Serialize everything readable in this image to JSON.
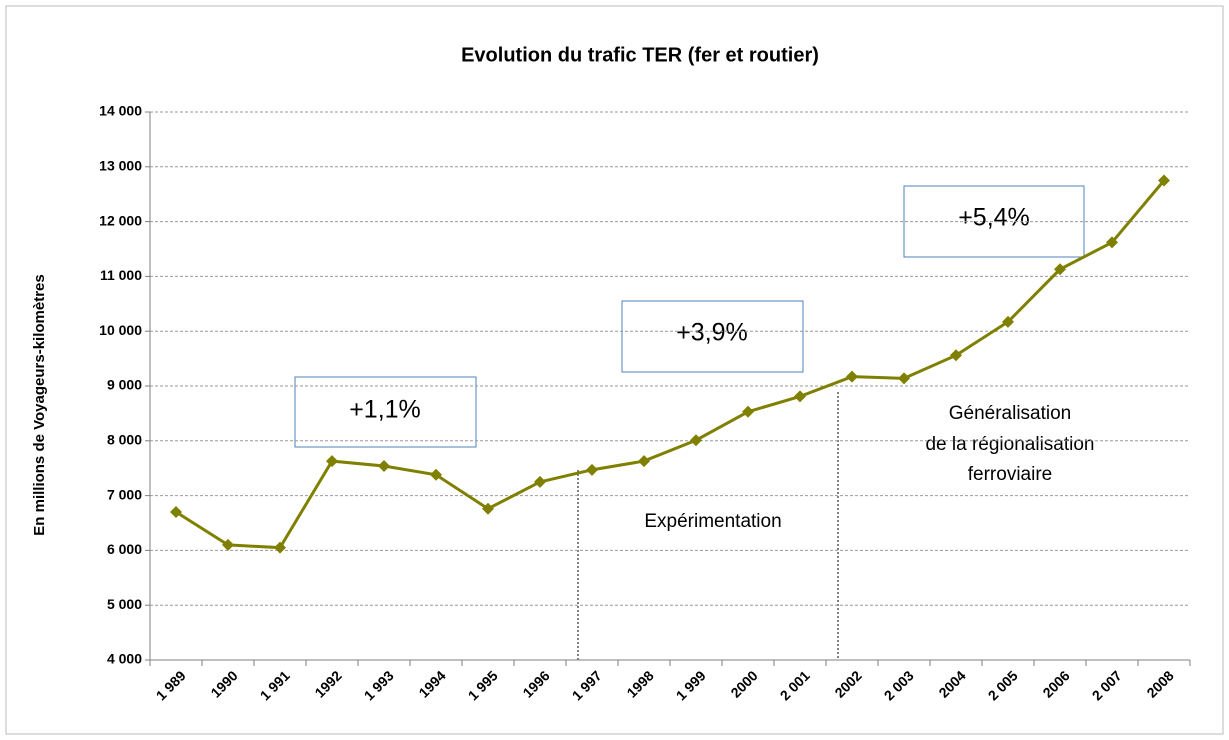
{
  "chart_data": {
    "type": "line",
    "title": "Evolution du trafic TER (fer et routier)",
    "y_label": "En millions de Voyageurs-kilomètres",
    "categories": [
      "1 989",
      "1990",
      "1 991",
      "1992",
      "1 993",
      "1994",
      "1 995",
      "1996",
      "1 997",
      "1998",
      "1 999",
      "2000",
      "2 001",
      "2002",
      "2 003",
      "2004",
      "2 005",
      "2006",
      "2 007",
      "2008"
    ],
    "series": [
      {
        "name": "Trafic TER",
        "color": "#808000",
        "values": [
          6700,
          6100,
          6050,
          7630,
          7540,
          7380,
          6760,
          7250,
          7470,
          7630,
          8010,
          8530,
          8810,
          9170,
          9140,
          9560,
          10170,
          11130,
          11620,
          12750
        ]
      }
    ],
    "ylim": [
      4000,
      14000
    ],
    "yticks": [
      {
        "value": 4000,
        "label": "4 000"
      },
      {
        "value": 5000,
        "label": "5 000"
      },
      {
        "value": 6000,
        "label": "6 000"
      },
      {
        "value": 7000,
        "label": "7 000"
      },
      {
        "value": 8000,
        "label": "8 000"
      },
      {
        "value": 9000,
        "label": "9 000"
      },
      {
        "value": 10000,
        "label": "10 000"
      },
      {
        "value": 11000,
        "label": "11 000"
      },
      {
        "value": 12000,
        "label": "12 000"
      },
      {
        "value": 13000,
        "label": "13 000"
      },
      {
        "value": 14000,
        "label": "14 000"
      }
    ],
    "grid": true,
    "annotations": {
      "rate_1": "+1,1%",
      "rate_2": "+3,9%",
      "rate_3": "+5,4%",
      "phase_1": "Expérimentation",
      "phase_2": [
        "Généralisation",
        "de la régionalisation",
        "ferroviaire"
      ]
    }
  }
}
